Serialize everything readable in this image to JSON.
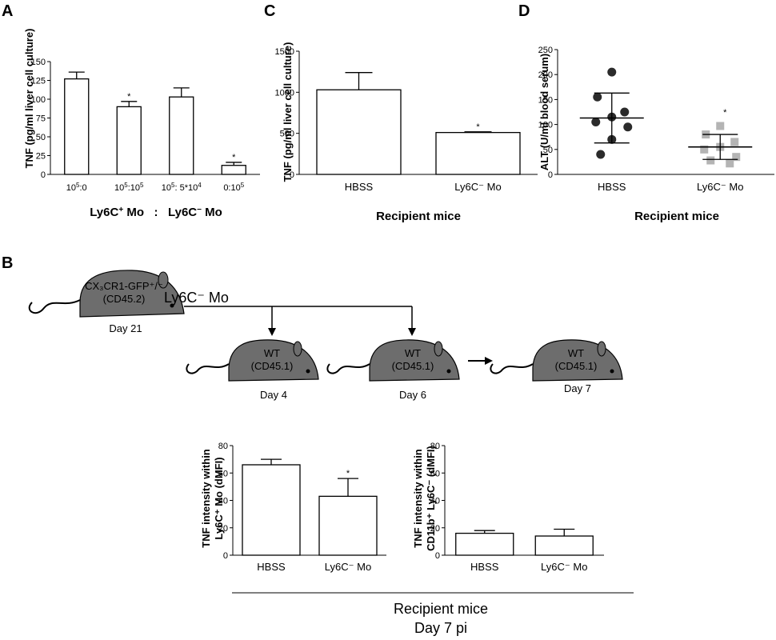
{
  "panels": {
    "a": "A",
    "b": "B",
    "c": "C",
    "d": "D"
  },
  "colors": {
    "mouse_fill": "#6d6d6d",
    "dot_hbss": "#2b2b2b",
    "dot_ly6c": "#b4b4b4",
    "bar_fill": "#ffffff",
    "line": "#000000"
  },
  "chart_data": [
    {
      "id": "A",
      "type": "bar",
      "ylabel": "TNF (pg/ml liver cell culture)",
      "categories": [
        "10^5:0",
        "10^5:10^5",
        "10^5: 5*10^4",
        "0:10^5"
      ],
      "values": [
        127,
        90,
        103,
        12
      ],
      "errors": [
        9,
        7,
        12,
        4
      ],
      "significant": [
        false,
        true,
        false,
        true
      ],
      "ylim": [
        0,
        150
      ],
      "yticks": [
        0,
        25,
        50,
        75,
        100,
        125,
        150
      ],
      "group_label": {
        "left_base": "Ly6C",
        "left_sup": "+",
        "left_tail": " Mo   :   Ly6C",
        "right_sup": "−",
        "right_tail": " Mo"
      }
    },
    {
      "id": "C",
      "type": "bar",
      "ylabel": "TNF (pg/ml liver cell culture)",
      "categories": [
        "HBSS",
        "Ly6C⁻ Mo"
      ],
      "values": [
        1030,
        510
      ],
      "errors": [
        210,
        8
      ],
      "significant": [
        false,
        true
      ],
      "ylim": [
        0,
        1500
      ],
      "yticks": [
        0,
        500,
        1000,
        1500
      ],
      "xlabel": "Recipient mice"
    },
    {
      "id": "D",
      "type": "scatter",
      "ylabel": "ALT (U/ml blood serum)",
      "categories": [
        "HBSS",
        "Ly6C⁻ Mo"
      ],
      "points": [
        [
          205,
          155,
          125,
          115,
          105,
          95,
          70,
          40
        ],
        [
          97,
          80,
          65,
          55,
          50,
          35,
          28,
          22
        ]
      ],
      "means": [
        113,
        55
      ],
      "sd": [
        50,
        25
      ],
      "significant": [
        false,
        true
      ],
      "ylim": [
        0,
        250
      ],
      "yticks": [
        0,
        50,
        100,
        150,
        200,
        250
      ],
      "xlabel": "Recipient mice"
    },
    {
      "id": "B-left",
      "type": "bar",
      "ylabel_line1": "TNF intensity within",
      "ylabel_line2": "Ly6C⁺ Mo (dMFI)",
      "categories": [
        "HBSS",
        "Ly6C⁻ Mo"
      ],
      "values": [
        66,
        43
      ],
      "errors": [
        4,
        13
      ],
      "significant": [
        false,
        true
      ],
      "ylim": [
        0,
        80
      ],
      "yticks": [
        0,
        20,
        40,
        60,
        80
      ]
    },
    {
      "id": "B-right",
      "type": "bar",
      "ylabel_line1": "TNF intensity within",
      "ylabel_line2": "CD11b⁺ Ly6C⁻ (dMFI)",
      "categories": [
        "HBSS",
        "Ly6C⁻ Mo"
      ],
      "values": [
        16,
        14
      ],
      "errors": [
        2,
        5
      ],
      "significant": [
        false,
        false
      ],
      "ylim": [
        0,
        80
      ],
      "yticks": [
        0,
        20,
        40,
        60,
        80
      ]
    }
  ],
  "schematic": {
    "donor_line1": "CX₃CR1-GFP⁺/⁻",
    "donor_line2": "(CD45.2)",
    "donor_day": "Day 21",
    "transfer_label": "Ly6C⁻ Mo",
    "recipients": [
      {
        "line1": "WT",
        "line2": "(CD45.1)",
        "day": "Day 4"
      },
      {
        "line1": "WT",
        "line2": "(CD45.1)",
        "day": "Day 6"
      },
      {
        "line1": "WT",
        "line2": "(CD45.1)",
        "day": "Day 7"
      }
    ]
  },
  "bottom_caption": {
    "line1": "Recipient mice",
    "line2": "Day 7 pi"
  },
  "significance_marker": "*"
}
